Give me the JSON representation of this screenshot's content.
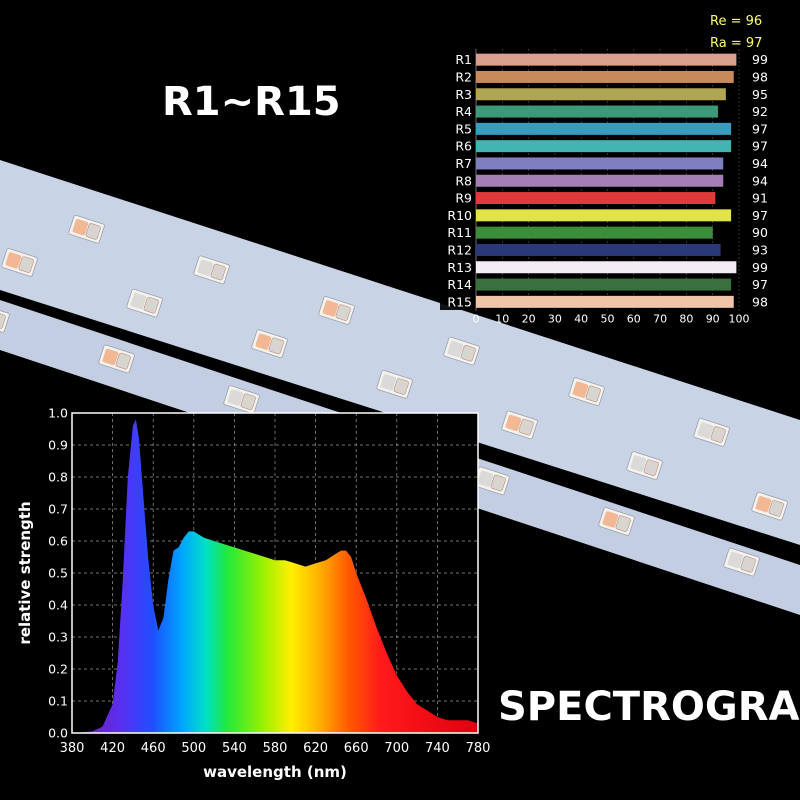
{
  "headline": "R1~R15",
  "spectrogram_label": "SPECTROGRAM",
  "colors": {
    "background": "#000000",
    "text": "#ffffff",
    "cri_text": "#ffff66",
    "strip": "#c9d3e6",
    "led_warm": "#f2b894",
    "led_cool": "#dcdad8"
  },
  "chart_data": [
    {
      "type": "bar",
      "orientation": "horizontal",
      "annotations": [
        "Re = 96",
        "Ra = 97"
      ],
      "categories": [
        "R1",
        "R2",
        "R3",
        "R4",
        "R5",
        "R6",
        "R7",
        "R8",
        "R9",
        "R10",
        "R11",
        "R12",
        "R13",
        "R14",
        "R15"
      ],
      "values": [
        99,
        98,
        95,
        92,
        97,
        97,
        94,
        94,
        91,
        97,
        90,
        93,
        99,
        97,
        98
      ],
      "colors": [
        "#d9a08d",
        "#c88a5b",
        "#b0a553",
        "#3a9a7a",
        "#3a9bc0",
        "#41b6b0",
        "#7f7fc0",
        "#a37fb5",
        "#e03a3a",
        "#e2e24a",
        "#3b8c3b",
        "#2a3a78",
        "#f3ecf4",
        "#3a7040",
        "#f0c4a6"
      ],
      "xlim": [
        0,
        100
      ],
      "xticks": [
        "0",
        "10",
        "20",
        "30",
        "40",
        "50",
        "60",
        "70",
        "80",
        "90",
        "100"
      ],
      "grid": true
    },
    {
      "type": "area",
      "xlabel": "wavelength (nm)",
      "ylabel": "relative strength",
      "xlim": [
        380,
        780
      ],
      "ylim": [
        0,
        1.0
      ],
      "xticks": [
        "380",
        "420",
        "460",
        "500",
        "540",
        "580",
        "620",
        "660",
        "700",
        "740",
        "780"
      ],
      "yticks": [
        "0.0",
        "0.1",
        "0.2",
        "0.3",
        "0.4",
        "0.5",
        "0.6",
        "0.7",
        "0.8",
        "0.9",
        "1.0"
      ],
      "grid": true,
      "fill": "visible-spectrum gradient",
      "x": [
        380,
        400,
        410,
        420,
        425,
        430,
        435,
        440,
        443,
        446,
        450,
        455,
        460,
        465,
        470,
        475,
        480,
        485,
        490,
        495,
        500,
        505,
        510,
        520,
        530,
        540,
        550,
        560,
        570,
        580,
        590,
        600,
        610,
        620,
        630,
        640,
        645,
        650,
        655,
        660,
        670,
        680,
        690,
        700,
        710,
        720,
        730,
        740,
        750,
        760,
        770,
        780
      ],
      "y": [
        0.0,
        0.005,
        0.02,
        0.09,
        0.22,
        0.48,
        0.8,
        0.96,
        0.98,
        0.92,
        0.75,
        0.55,
        0.4,
        0.32,
        0.36,
        0.48,
        0.57,
        0.58,
        0.61,
        0.63,
        0.63,
        0.62,
        0.61,
        0.6,
        0.59,
        0.58,
        0.57,
        0.56,
        0.55,
        0.54,
        0.54,
        0.53,
        0.52,
        0.53,
        0.54,
        0.56,
        0.57,
        0.57,
        0.55,
        0.5,
        0.42,
        0.33,
        0.25,
        0.18,
        0.13,
        0.09,
        0.07,
        0.05,
        0.04,
        0.04,
        0.04,
        0.03
      ]
    }
  ]
}
